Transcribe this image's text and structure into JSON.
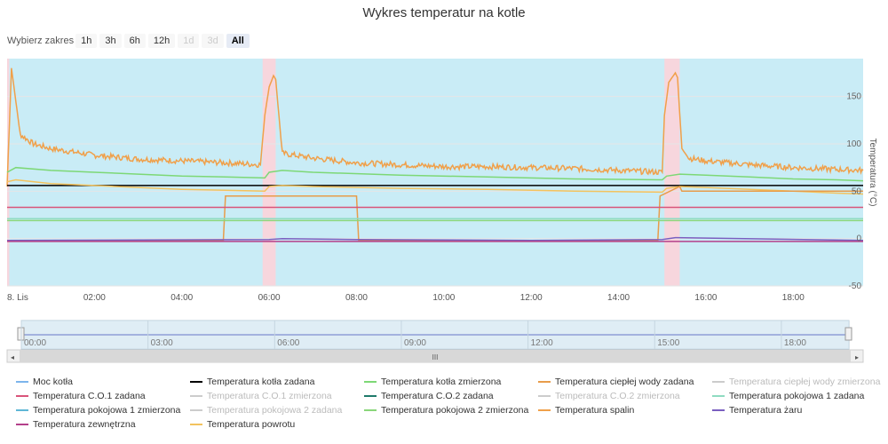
{
  "title": "Wykres temperatur na kotle",
  "range_selector": {
    "label": "Wybierz zakres",
    "buttons": [
      {
        "label": "1h",
        "state": "normal"
      },
      {
        "label": "3h",
        "state": "normal"
      },
      {
        "label": "6h",
        "state": "normal"
      },
      {
        "label": "12h",
        "state": "normal"
      },
      {
        "label": "1d",
        "state": "disabled"
      },
      {
        "label": "3d",
        "state": "disabled"
      },
      {
        "label": "All",
        "state": "selected"
      }
    ]
  },
  "chart_data": {
    "type": "line",
    "title": "Wykres temperatur na kotle",
    "ylabel": "Temperatura (°C)",
    "xlabel": "",
    "xlim_hours": [
      0,
      19.6
    ],
    "ylim": [
      -50,
      190
    ],
    "x_tick_labels": [
      {
        "h": 0,
        "label": "8. Lis"
      },
      {
        "h": 2,
        "label": "02:00"
      },
      {
        "h": 4,
        "label": "04:00"
      },
      {
        "h": 6,
        "label": "06:00"
      },
      {
        "h": 8,
        "label": "08:00"
      },
      {
        "h": 10,
        "label": "10:00"
      },
      {
        "h": 12,
        "label": "12:00"
      },
      {
        "h": 14,
        "label": "14:00"
      },
      {
        "h": 16,
        "label": "16:00"
      },
      {
        "h": 18,
        "label": "18:00"
      }
    ],
    "y_ticks": [
      -50,
      0,
      50,
      100,
      150
    ],
    "plot_bands": [
      {
        "from_h": 0,
        "to_h": 0.05,
        "color": "#f7d6dd"
      },
      {
        "from_h": 5.85,
        "to_h": 6.15,
        "color": "#f7d6dd"
      },
      {
        "from_h": 15.05,
        "to_h": 15.4,
        "color": "#f7d6dd"
      }
    ],
    "background_color": "#c9ecf6",
    "series": [
      {
        "name": "Temperatura spalin",
        "color": "#f0a04a",
        "x": [
          0,
          0.1,
          0.3,
          0.6,
          1,
          2,
          3,
          4,
          5,
          5.8,
          5.9,
          6.0,
          6.1,
          6.15,
          6.3,
          7,
          8,
          9,
          10,
          11,
          12,
          13,
          14,
          15,
          15.05,
          15.15,
          15.3,
          15.35,
          15.45,
          15.6,
          16,
          17,
          18,
          19,
          19.6
        ],
        "y": [
          55,
          180,
          110,
          100,
          95,
          88,
          84,
          82,
          80,
          78,
          130,
          160,
          172,
          168,
          90,
          85,
          80,
          78,
          76,
          76,
          75,
          74,
          72,
          70,
          130,
          165,
          175,
          170,
          95,
          85,
          82,
          78,
          75,
          73,
          72
        ]
      },
      {
        "name": "Temperatura kotła zmierzona",
        "color": "#7dd876",
        "x": [
          0,
          0.2,
          1,
          2,
          3,
          4,
          5,
          5.9,
          6.0,
          6.3,
          7,
          9,
          11,
          13,
          15,
          15.1,
          15.4,
          16,
          17,
          18,
          19,
          19.6
        ],
        "y": [
          70,
          75,
          72,
          70,
          68,
          66,
          65,
          64,
          70,
          72,
          70,
          67,
          65,
          63,
          62,
          66,
          68,
          67,
          65,
          63,
          62,
          61
        ]
      },
      {
        "name": "Temperatura kotła zadana",
        "color": "#000000",
        "x": [
          0,
          19.6
        ],
        "y": [
          56,
          56
        ]
      },
      {
        "name": "Temperatura powrotu",
        "color": "#f3c35e",
        "x": [
          0,
          0.2,
          1,
          2,
          3,
          4,
          5,
          5.9,
          6.0,
          6.3,
          7,
          9,
          11,
          13,
          15,
          15.1,
          15.4,
          16,
          17,
          18,
          19,
          19.6
        ],
        "y": [
          60,
          62,
          58,
          56,
          54,
          52,
          51,
          50,
          55,
          56,
          55,
          53,
          52,
          50,
          49,
          53,
          55,
          54,
          52,
          50,
          48,
          47
        ]
      },
      {
        "name": "Temperatura ciepłej wody zadana",
        "color": "#e89c4a",
        "x": [
          0,
          4.95,
          5.0,
          8.0,
          8.05,
          14.9,
          14.95,
          15.4,
          15.45,
          19.6
        ],
        "y": [
          -2,
          -2,
          45,
          45,
          -2,
          -2,
          45,
          55,
          50,
          50
        ]
      },
      {
        "name": "Temperatura C.O.1 zadana",
        "color": "#d9547a",
        "x": [
          0,
          19.6
        ],
        "y": [
          33,
          33
        ]
      },
      {
        "name": "Temperatura pokojowa 1 zadana",
        "color": "#8fdcc1",
        "x": [
          0,
          19.6
        ],
        "y": [
          21,
          21
        ]
      },
      {
        "name": "Temperatura pokojowa 2 zmierzona",
        "color": "#8ad67a",
        "x": [
          0,
          19.6
        ],
        "y": [
          19,
          19
        ]
      },
      {
        "name": "Temperatura żaru",
        "color": "#7a5fc0",
        "x": [
          0,
          6,
          6.3,
          8,
          12,
          15,
          15.3,
          19.6
        ],
        "y": [
          -2,
          -1,
          0,
          -1,
          -2,
          -1,
          1,
          -2
        ]
      },
      {
        "name": "Temperatura zewnętrzna",
        "color": "#b4408a",
        "x": [
          0,
          19.6
        ],
        "y": [
          -3,
          -3
        ]
      }
    ]
  },
  "navigator": {
    "tick_labels": [
      "00:00",
      "03:00",
      "06:00",
      "09:00",
      "12:00",
      "15:00",
      "18:00"
    ],
    "scroll_grip": "III"
  },
  "legend": {
    "items": [
      {
        "name": "Moc kotła",
        "color": "#7cb5ec",
        "visible": true
      },
      {
        "name": "Temperatura kotła zadana",
        "color": "#000000",
        "visible": true
      },
      {
        "name": "Temperatura kotła zmierzona",
        "color": "#7dd876",
        "visible": true
      },
      {
        "name": "Temperatura ciepłej wody zadana",
        "color": "#e89c4a",
        "visible": true
      },
      {
        "name": "Temperatura ciepłej wody zmierzona",
        "color": "#cccccc",
        "visible": false
      },
      {
        "name": "Temperatura C.O.1 zadana",
        "color": "#d9547a",
        "visible": true
      },
      {
        "name": "Temperatura C.O.1 zmierzona",
        "color": "#cccccc",
        "visible": false
      },
      {
        "name": "Temperatura C.O.2 zadana",
        "color": "#1f7a6b",
        "visible": true
      },
      {
        "name": "Temperatura C.O.2 zmierzona",
        "color": "#cccccc",
        "visible": false
      },
      {
        "name": "Temperatura pokojowa 1 zadana",
        "color": "#8fdcc1",
        "visible": true
      },
      {
        "name": "Temperatura pokojowa 1 zmierzona",
        "color": "#5fb7d6",
        "visible": true
      },
      {
        "name": "Temperatura pokojowa 2 zadana",
        "color": "#cccccc",
        "visible": false
      },
      {
        "name": "Temperatura pokojowa 2 zmierzona",
        "color": "#8ad67a",
        "visible": true
      },
      {
        "name": "Temperatura spalin",
        "color": "#f0a04a",
        "visible": true
      },
      {
        "name": "Temperatura żaru",
        "color": "#7a5fc0",
        "visible": true
      },
      {
        "name": "Temperatura zewnętrzna",
        "color": "#b4408a",
        "visible": true
      },
      {
        "name": "Temperatura powrotu",
        "color": "#f3c35e",
        "visible": true
      }
    ]
  }
}
